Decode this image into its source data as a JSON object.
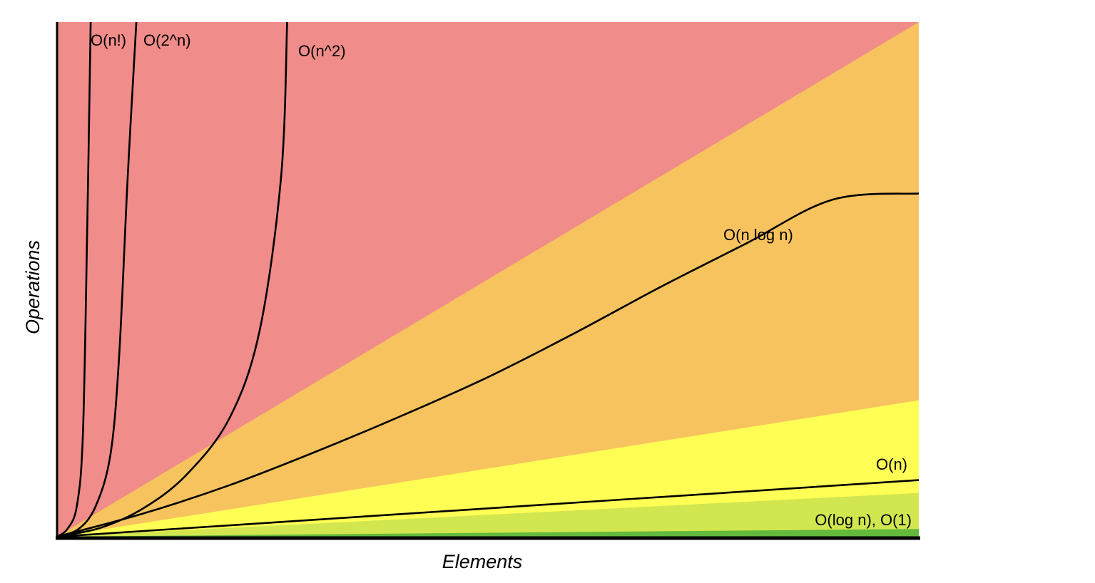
{
  "chart_data": {
    "type": "area",
    "title": "",
    "xlabel": "Elements",
    "ylabel": "Operations",
    "ticks_shown": false,
    "grid": false,
    "legend": "none",
    "xlim": [
      0,
      100
    ],
    "ylim": [
      0,
      100
    ],
    "regions": [
      {
        "color": "#F08C89",
        "upper": [
          [
            0,
            100
          ],
          [
            100,
            100
          ]
        ]
      },
      {
        "color": "#F7C35F",
        "upper": [
          [
            0,
            0
          ],
          [
            100,
            100
          ]
        ]
      },
      {
        "color": "#FEFE55",
        "upper": [
          [
            0,
            0
          ],
          [
            100,
            26.5
          ]
        ]
      },
      {
        "color": "#D2E64F",
        "upper": [
          [
            0,
            0
          ],
          [
            100,
            8.5
          ]
        ]
      },
      {
        "color": "#63BA3C",
        "upper": [
          [
            0,
            0
          ],
          [
            100,
            1.5
          ]
        ]
      }
    ],
    "series": [
      {
        "label": "O(n!)",
        "points": [
          [
            0,
            0
          ],
          [
            1.2,
            1.5
          ],
          [
            2.3,
            6
          ],
          [
            3.0,
            20
          ],
          [
            3.5,
            60
          ],
          [
            3.9,
            100
          ]
        ]
      },
      {
        "label": "O(2^n)",
        "points": [
          [
            0,
            0
          ],
          [
            2.5,
            1.5
          ],
          [
            4.5,
            6
          ],
          [
            6.2,
            16
          ],
          [
            7.2,
            35
          ],
          [
            8.2,
            70
          ],
          [
            9.2,
            100
          ]
        ]
      },
      {
        "label": "O(n^2)",
        "points": [
          [
            0,
            0
          ],
          [
            5,
            1.7
          ],
          [
            10,
            5.5
          ],
          [
            15,
            12
          ],
          [
            20,
            23
          ],
          [
            23.5,
            40
          ],
          [
            26,
            70
          ],
          [
            26.7,
            100
          ]
        ]
      },
      {
        "label": "O(n log n)",
        "points": [
          [
            0,
            0
          ],
          [
            10,
            4.5
          ],
          [
            20,
            10
          ],
          [
            30,
            16.5
          ],
          [
            40,
            23.5
          ],
          [
            50,
            31
          ],
          [
            60,
            39.5
          ],
          [
            70,
            48.5
          ],
          [
            80,
            57
          ],
          [
            90,
            65.5
          ],
          [
            100,
            66.7
          ]
        ]
      },
      {
        "label": "O(n)",
        "points": [
          [
            0,
            0
          ],
          [
            100,
            11
          ]
        ]
      }
    ],
    "annotations": [
      {
        "text": "O(n!)"
      },
      {
        "text": "O(2^n)"
      },
      {
        "text": "O(n^2)"
      },
      {
        "text": "O(n log n)"
      },
      {
        "text": "O(n)"
      },
      {
        "text": "O(log n), O(1)"
      }
    ]
  }
}
